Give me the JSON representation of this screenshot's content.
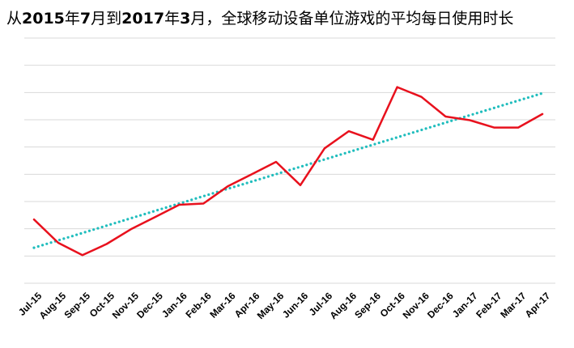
{
  "title_parts": [
    {
      "text": "从",
      "bold": false
    },
    {
      "text": "2015",
      "bold": true
    },
    {
      "text": "年",
      "bold": false
    },
    {
      "text": "7",
      "bold": true
    },
    {
      "text": "月到",
      "bold": false
    },
    {
      "text": "2017",
      "bold": true
    },
    {
      "text": "年",
      "bold": false
    },
    {
      "text": "3",
      "bold": true
    },
    {
      "text": "月，全球移动设备单位游戏的平均每日使用时长",
      "bold": false
    }
  ],
  "chart_data": {
    "type": "line",
    "title": "从2015年7月到2017年3月，全球移动设备单位游戏的平均每日使用时长",
    "xlabel": "",
    "ylabel": "",
    "categories": [
      "Jul-15",
      "Aug-15",
      "Sep-15",
      "Oct-15",
      "Nov-15",
      "Dec-15",
      "Jan-16",
      "Feb-16",
      "Mar-16",
      "Apr-16",
      "May-16",
      "Jun-16",
      "Jul-16",
      "Aug-16",
      "Sep-16",
      "Oct-16",
      "Nov-16",
      "Dec-16",
      "Jan-17",
      "Feb-17",
      "Mar-17",
      "Apr-17"
    ],
    "ylim": [
      0,
      10
    ],
    "y_tick_labels_visible": false,
    "gridlines": "horizontal",
    "gridline_count": 9,
    "legend": "none",
    "series": [
      {
        "values": [
          2.6,
          1.65,
          1.15,
          1.6,
          2.2,
          2.7,
          3.2,
          3.25,
          3.95,
          4.45,
          4.95,
          4.0,
          5.5,
          6.2,
          5.85,
          8.0,
          7.6,
          6.8,
          6.65,
          6.35,
          6.35,
          6.9
        ],
        "color": "#e8111d",
        "style": "solid"
      },
      {
        "values": [
          1.45,
          1.75,
          2.05,
          2.35,
          2.65,
          2.95,
          3.25,
          3.55,
          3.85,
          4.15,
          4.45,
          4.75,
          5.05,
          5.35,
          5.65,
          5.95,
          6.25,
          6.55,
          6.85,
          7.15,
          7.45,
          7.75
        ],
        "color": "#1fbdbd",
        "style": "dotted",
        "role": "trendline"
      }
    ]
  }
}
